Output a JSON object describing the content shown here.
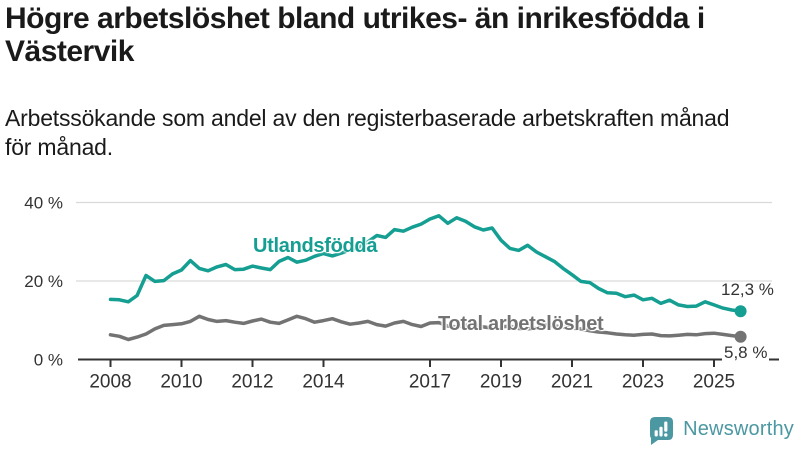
{
  "header": {
    "title_lines": [
      "Högre arbetslöshet bland utrikes- än inrikesfödda i",
      "Västervik"
    ],
    "subtitle_lines": [
      "Arbetssökande som andel av den registerbaserade arbetskraften månad",
      "för månad."
    ]
  },
  "chart_data": {
    "type": "line",
    "title": "Högre arbetslöshet bland utrikes- än inrikesfödda i Västervik",
    "subtitle": "Arbetssökande som andel av den registerbaserade arbetskraften månad för månad.",
    "xlabel": "",
    "ylabel": "",
    "ylim": [
      0,
      43
    ],
    "grid": "horizontal",
    "legend_position": "inline-labels",
    "x_unit": "year",
    "x_start": 2008,
    "x_step": 0.25,
    "x_ticks": [
      2008,
      2010,
      2012,
      2014,
      2017,
      2019,
      2021,
      2023,
      2025
    ],
    "y_ticks": [
      {
        "value": 0,
        "label": "0 %"
      },
      {
        "value": 20,
        "label": "20 %"
      },
      {
        "value": 40,
        "label": "40 %"
      }
    ],
    "series": [
      {
        "name": "Utlandsfödda",
        "color": "#159e92",
        "end_label": "12,3 %",
        "end_value": 12.3,
        "values": [
          15.3,
          15.2,
          14.7,
          16.3,
          21.4,
          19.9,
          20.1,
          21.8,
          22.8,
          25.2,
          23.2,
          22.6,
          23.6,
          24.2,
          22.9,
          23.0,
          23.8,
          23.3,
          22.9,
          25.0,
          26.0,
          24.8,
          25.3,
          26.3,
          27.0,
          26.4,
          27.1,
          27.9,
          28.6,
          30.0,
          31.6,
          31.1,
          33.1,
          32.7,
          33.7,
          34.5,
          35.8,
          36.6,
          34.7,
          36.1,
          35.2,
          33.8,
          33.0,
          33.5,
          30.4,
          28.3,
          27.8,
          29.1,
          27.4,
          26.2,
          25.0,
          23.2,
          21.6,
          19.9,
          19.6,
          18.1,
          17.0,
          16.9,
          16.0,
          16.4,
          15.2,
          15.6,
          14.3,
          15.1,
          13.9,
          13.5,
          13.6,
          14.7,
          13.9,
          13.1,
          12.6,
          12.3
        ]
      },
      {
        "name": "Total arbetslöshet",
        "color": "#737373",
        "end_label": "5,8 %",
        "end_value": 5.8,
        "values": [
          6.3,
          5.9,
          5.1,
          5.7,
          6.5,
          7.8,
          8.7,
          8.9,
          9.1,
          9.7,
          11.0,
          10.2,
          9.7,
          9.9,
          9.5,
          9.2,
          9.8,
          10.3,
          9.5,
          9.2,
          10.1,
          11.0,
          10.4,
          9.5,
          9.9,
          10.4,
          9.6,
          9.0,
          9.3,
          9.7,
          8.9,
          8.5,
          9.3,
          9.7,
          8.9,
          8.4,
          9.3,
          9.4,
          8.5,
          8.3,
          8.7,
          8.9,
          8.3,
          8.0,
          8.3,
          8.5,
          7.9,
          7.8,
          8.0,
          8.8,
          8.6,
          8.2,
          8.0,
          7.8,
          7.3,
          7.0,
          6.8,
          6.5,
          6.3,
          6.2,
          6.4,
          6.5,
          6.1,
          6.0,
          6.2,
          6.4,
          6.3,
          6.6,
          6.7,
          6.4,
          6.1,
          5.8
        ]
      }
    ]
  },
  "colors": {
    "accent_teal": "#159e92",
    "line_gray": "#737373",
    "axis": "#333333",
    "gridline": "#d9d9d9",
    "text": "#1a1a1a",
    "brand_teal": "#4b98a2"
  },
  "footer": {
    "brand": "Newsworthy",
    "logo_icon": "bar-chart-speech-bubble-icon"
  }
}
